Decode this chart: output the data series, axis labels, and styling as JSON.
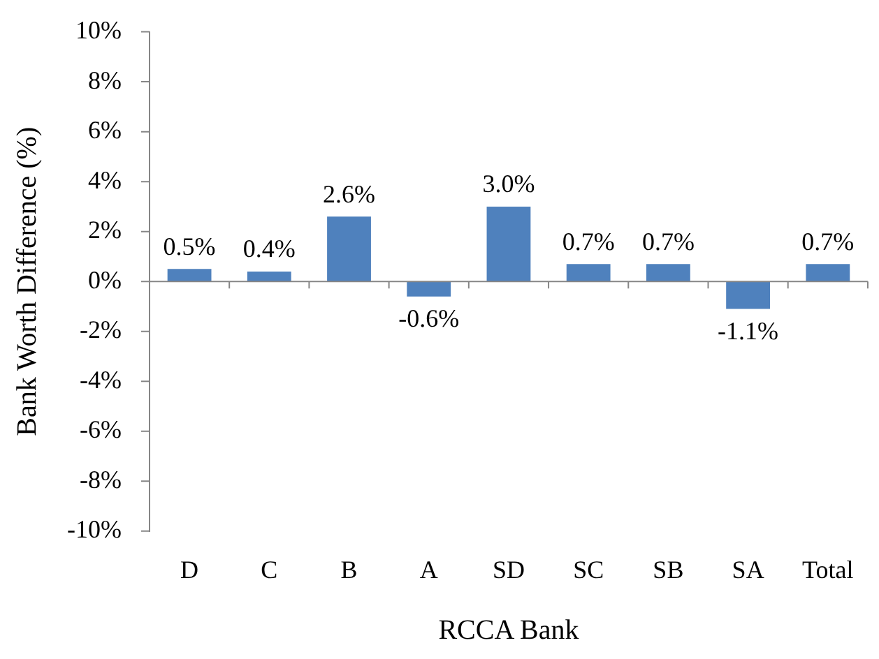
{
  "chart_data": {
    "type": "bar",
    "xlabel": "RCCA Bank",
    "ylabel": "Bank Worth Difference (%)",
    "categories": [
      "D",
      "C",
      "B",
      "A",
      "SD",
      "SC",
      "SB",
      "SA",
      "Total"
    ],
    "values": [
      0.5,
      0.4,
      2.6,
      -0.6,
      3.0,
      0.7,
      0.7,
      -1.1,
      0.7
    ],
    "value_labels": [
      "0.5%",
      "0.4%",
      "2.6%",
      "-0.6%",
      "3.0%",
      "0.7%",
      "0.7%",
      "-1.1%",
      "0.7%"
    ],
    "color": "#4f81bd",
    "ylim": [
      -10,
      10
    ],
    "yticks": [
      {
        "value": -10,
        "label": "-10%"
      },
      {
        "value": -8,
        "label": "-8%"
      },
      {
        "value": -6,
        "label": "-6%"
      },
      {
        "value": -4,
        "label": "-4%"
      },
      {
        "value": -2,
        "label": "-2%"
      },
      {
        "value": 0,
        "label": "0%"
      },
      {
        "value": 2,
        "label": "2%"
      },
      {
        "value": 4,
        "label": "4%"
      },
      {
        "value": 6,
        "label": "6%"
      },
      {
        "value": 8,
        "label": "8%"
      },
      {
        "value": 10,
        "label": "10%"
      }
    ],
    "legend": false
  }
}
